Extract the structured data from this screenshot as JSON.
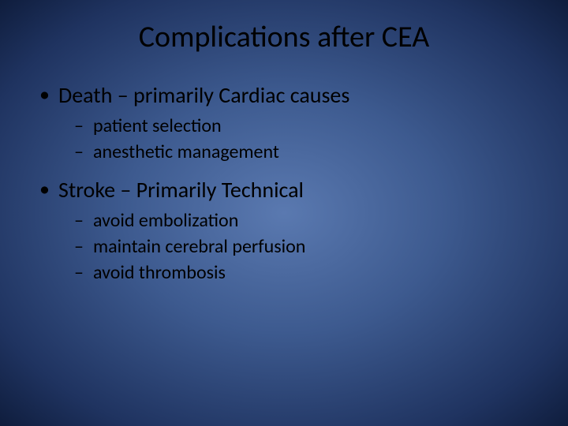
{
  "slide": {
    "title": "Complications after CEA",
    "bullets": [
      {
        "text": "Death – primarily Cardiac causes",
        "sub": [
          "patient selection",
          "anesthetic management"
        ]
      },
      {
        "text": "Stroke – Primarily Technical",
        "sub": [
          "avoid embolization",
          "maintain cerebral perfusion",
          "avoid thrombosis"
        ]
      }
    ],
    "colors": {
      "background_center": "#5a79b0",
      "background_mid": "#3d5a8f",
      "background_outer": "#1f3360",
      "background_edge": "#0f1d3d",
      "text": "#000000"
    },
    "typography": {
      "title_fontsize": 38,
      "level1_fontsize": 28,
      "level2_fontsize": 24,
      "font_family": "Calibri"
    }
  }
}
